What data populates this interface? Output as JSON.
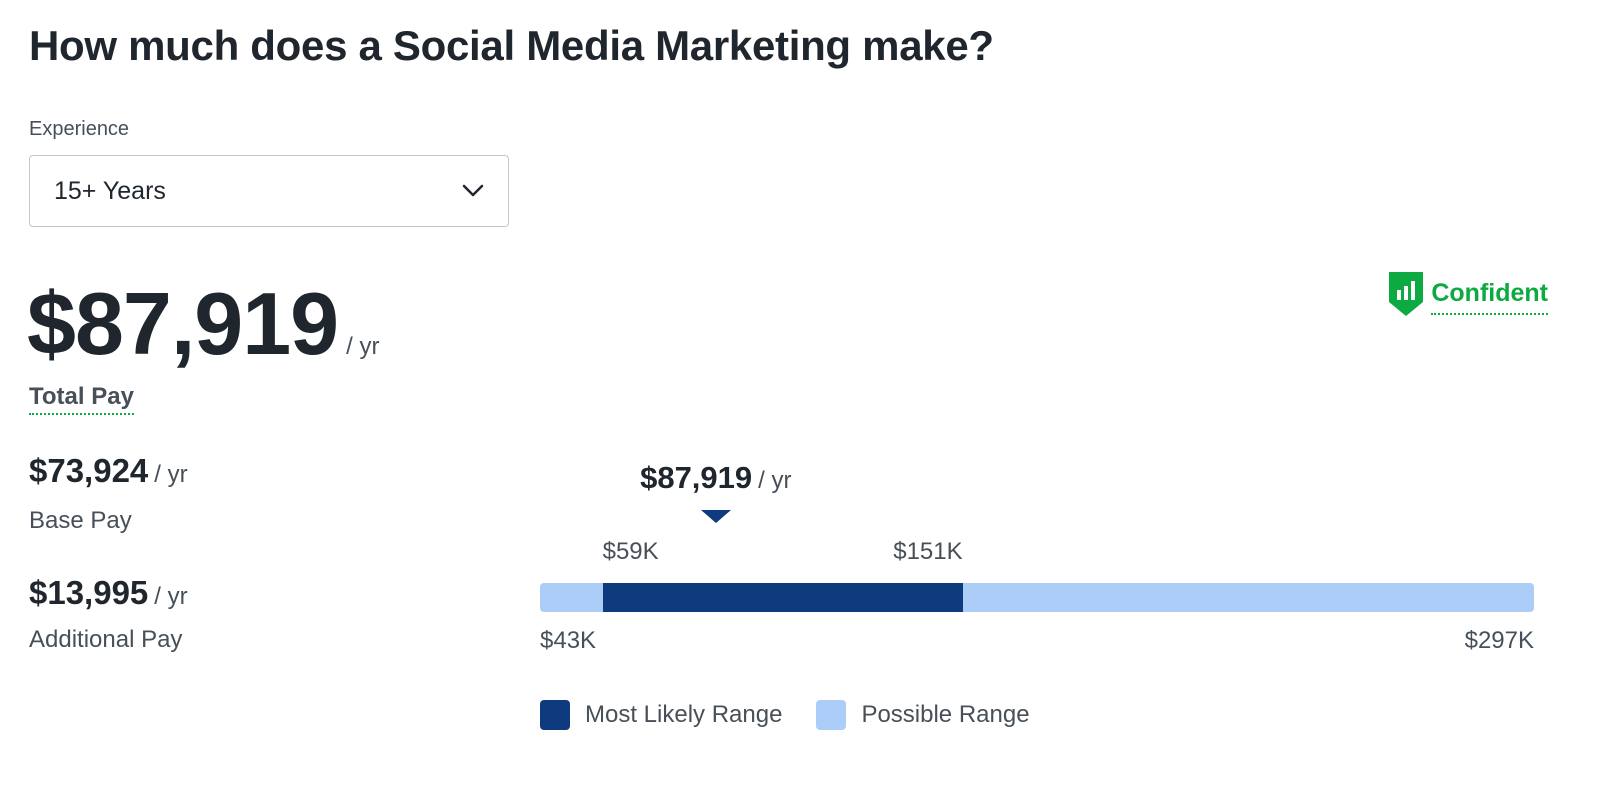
{
  "header": {
    "title": "How much does a Social Media Marketing make?"
  },
  "experience": {
    "label": "Experience",
    "selected": "15+ Years"
  },
  "total": {
    "amount": "$87,919",
    "unit": "/ yr",
    "label": "Total Pay"
  },
  "confidence": {
    "label": "Confident",
    "icon": "confidence-shield-icon",
    "color": "#0caa41"
  },
  "base_pay": {
    "amount": "$73,924",
    "unit": "/ yr",
    "label": "Base Pay"
  },
  "additional_pay": {
    "amount": "$13,995",
    "unit": "/ yr",
    "label": "Additional Pay"
  },
  "chart_data": {
    "type": "bar",
    "title": "",
    "marker": {
      "value": 87919,
      "label": "$87,919",
      "unit": "/ yr"
    },
    "possible_range": {
      "min": 43000,
      "max": 297000,
      "min_label": "$43K",
      "max_label": "$297K"
    },
    "likely_range": {
      "min": 59000,
      "max": 151000,
      "min_label": "$59K",
      "max_label": "$151K"
    },
    "legend": {
      "placement": "bottom-left",
      "items": [
        {
          "label": "Most Likely Range",
          "color": "#0d3b7d"
        },
        {
          "label": "Possible Range",
          "color": "#abcdf8"
        }
      ]
    }
  }
}
